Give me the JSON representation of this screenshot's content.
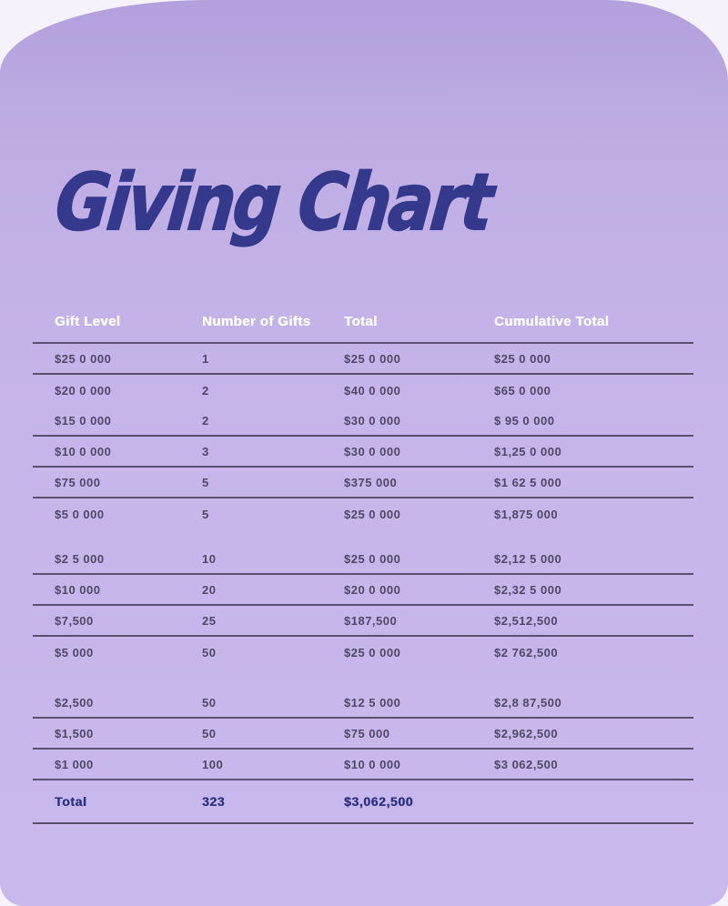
{
  "title": "Giving Chart",
  "theme": {
    "page_background": "#f5f2fb",
    "card_background": "#c6b5ea",
    "card_background_top": "#b3a0dd",
    "title_color": "#35398c",
    "header_text_color": "#ffffff",
    "cell_text_color": "#4e4868",
    "separator_line_color": "#57516e",
    "total_row_text_color": "#2d3080"
  },
  "table": {
    "columns": [
      "Gift Level",
      "Number of Gifts",
      "Total",
      "Cumulative Total"
    ],
    "rows": [
      [
        "$25 0 000",
        "1",
        "$25 0 000",
        "$25 0 000"
      ],
      [
        "$20 0 000",
        "2",
        "$40 0 000",
        "$65 0 000"
      ],
      [
        "$15 0 000",
        "2",
        "$30 0 000",
        "$ 95 0 000"
      ],
      [
        "$10 0 000",
        "3",
        "$30 0 000",
        "$1,25 0 000"
      ],
      [
        "$75 000",
        "5",
        "$375 000",
        "$1 62 5 000"
      ],
      [
        "$5 0 000",
        "5",
        "$25 0 000",
        "$1,875 000"
      ],
      [
        "$2 5 000",
        "10",
        "$25 0 000",
        "$2,12 5 000"
      ],
      [
        "$10 000",
        "20",
        "$20 0 000",
        "$2,32 5 000"
      ],
      [
        "$7,500",
        "25",
        "$187,500",
        "$2,512,500"
      ],
      [
        "$5 000",
        "50",
        "$25 0 000",
        "$2 762,500"
      ],
      [
        "$2,500",
        "50",
        "$12 5 000",
        "$2,8 87,500"
      ],
      [
        "$1,500",
        "50",
        "$75 000",
        "$2,962,500"
      ],
      [
        "$1 000",
        "100",
        "$10 0 000",
        "$3 062,500"
      ]
    ],
    "total_row": [
      "Total",
      "323",
      "$3,062,500",
      ""
    ]
  },
  "chart_data": {
    "type": "table",
    "title": "Giving Chart",
    "columns": [
      "Gift Level",
      "Number of Gifts",
      "Total",
      "Cumulative Total"
    ],
    "rows": [
      [
        250000,
        1,
        250000,
        250000
      ],
      [
        200000,
        2,
        400000,
        650000
      ],
      [
        150000,
        2,
        300000,
        950000
      ],
      [
        100000,
        3,
        300000,
        1250000
      ],
      [
        75000,
        5,
        375000,
        1625000
      ],
      [
        50000,
        5,
        250000,
        1875000
      ],
      [
        25000,
        10,
        250000,
        2125000
      ],
      [
        10000,
        20,
        200000,
        2325000
      ],
      [
        7500,
        25,
        187500,
        2512500
      ],
      [
        5000,
        50,
        250000,
        2762500
      ],
      [
        2500,
        50,
        125000,
        2887500
      ],
      [
        1500,
        50,
        75000,
        2962500
      ],
      [
        1000,
        100,
        100000,
        3062500
      ]
    ],
    "totals": {
      "number_of_gifts": 323,
      "total": 3062500
    }
  }
}
